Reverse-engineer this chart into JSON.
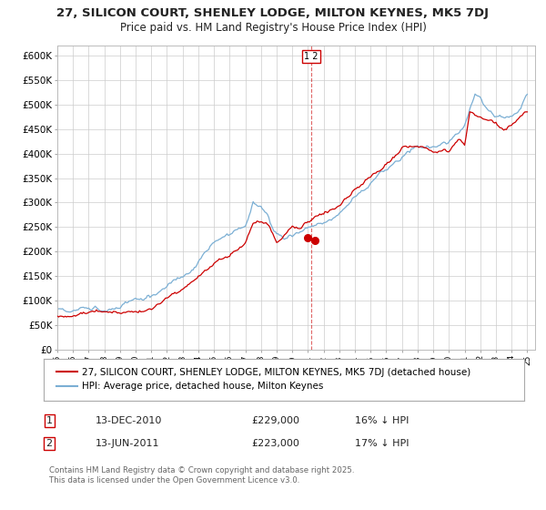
{
  "title_line1": "27, SILICON COURT, SHENLEY LODGE, MILTON KEYNES, MK5 7DJ",
  "title_line2": "Price paid vs. HM Land Registry's House Price Index (HPI)",
  "ylim": [
    0,
    620000
  ],
  "yticks": [
    0,
    50000,
    100000,
    150000,
    200000,
    250000,
    300000,
    350000,
    400000,
    450000,
    500000,
    550000,
    600000
  ],
  "ytick_labels": [
    "£0",
    "£50K",
    "£100K",
    "£150K",
    "£200K",
    "£250K",
    "£300K",
    "£350K",
    "£400K",
    "£450K",
    "£500K",
    "£550K",
    "£600K"
  ],
  "year_start": 1995,
  "year_end": 2025,
  "sale1_year": 2010.95,
  "sale1_price": 229000,
  "sale1_date": "13-DEC-2010",
  "sale1_hpi_diff": "16% ↓ HPI",
  "sale2_year": 2011.45,
  "sale2_price": 223000,
  "sale2_date": "13-JUN-2011",
  "sale2_hpi_diff": "17% ↓ HPI",
  "hpi_color": "#7bafd4",
  "price_color": "#cc0000",
  "vline_color": "#cc0000",
  "legend_label_red": "27, SILICON COURT, SHENLEY LODGE, MILTON KEYNES, MK5 7DJ (detached house)",
  "legend_label_blue": "HPI: Average price, detached house, Milton Keynes",
  "footnote": "Contains HM Land Registry data © Crown copyright and database right 2025.\nThis data is licensed under the Open Government Licence v3.0.",
  "background_color": "#ffffff",
  "grid_color": "#cccccc",
  "title_fontsize": 9.5,
  "subtitle_fontsize": 8.5,
  "axis_fontsize": 7.5,
  "legend_fontsize": 7.5,
  "table_fontsize": 8
}
